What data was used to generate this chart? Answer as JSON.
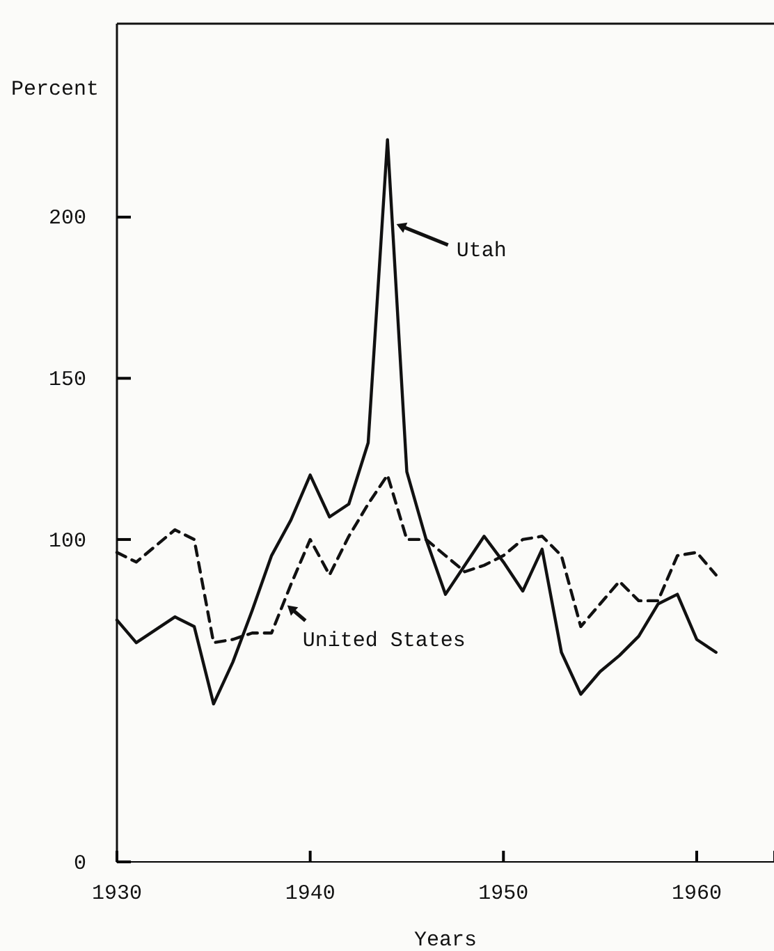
{
  "chart_data": {
    "type": "line",
    "xlabel": "Years",
    "ylabel": "Percent",
    "x": [
      1930,
      1931,
      1932,
      1933,
      1934,
      1935,
      1936,
      1937,
      1938,
      1939,
      1940,
      1941,
      1942,
      1943,
      1944,
      1945,
      1946,
      1947,
      1948,
      1949,
      1950,
      1951,
      1952,
      1953,
      1954,
      1955,
      1956,
      1957,
      1958,
      1959,
      1960,
      1961
    ],
    "series": [
      {
        "name": "Utah",
        "color": "#111111",
        "line_style": "solid",
        "values": [
          75,
          68,
          72,
          76,
          73,
          49,
          62,
          78,
          95,
          106,
          120,
          107,
          111,
          130,
          224,
          121,
          100,
          83,
          92,
          101,
          93,
          84,
          97,
          65,
          52,
          59,
          64,
          70,
          80,
          83,
          69,
          65
        ]
      },
      {
        "name": "United States",
        "color": "#111111",
        "line_style": "dashed",
        "values": [
          96,
          93,
          98,
          103,
          100,
          68,
          69,
          71,
          71,
          86,
          100,
          89,
          101,
          111,
          120,
          100,
          100,
          95,
          90,
          92,
          95,
          100,
          101,
          95,
          73,
          80,
          87,
          81,
          81,
          95,
          96,
          89
        ]
      }
    ],
    "xlim": [
      1930,
      1964
    ],
    "xticks": [
      1930,
      1940,
      1950,
      1960
    ],
    "ylim": [
      0,
      260
    ],
    "yticks": [
      0,
      100,
      150,
      200
    ],
    "grid": false,
    "marker": "none"
  }
}
